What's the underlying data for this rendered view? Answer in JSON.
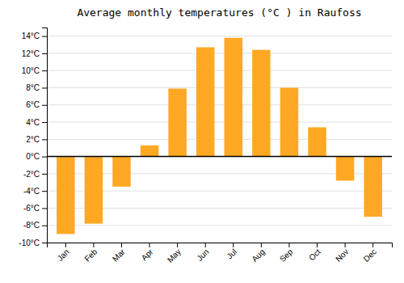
{
  "chart_data": {
    "type": "bar",
    "title": "Average monthly temperatures (°C ) in Raufoss",
    "categories": [
      "Jan",
      "Feb",
      "Mar",
      "Apr",
      "May",
      "Jun",
      "Jul",
      "Aug",
      "Sep",
      "Oct",
      "Nov",
      "Dec"
    ],
    "values": [
      -9.0,
      -7.8,
      -3.5,
      1.3,
      7.9,
      12.7,
      13.8,
      12.4,
      8.0,
      3.4,
      -2.8,
      -7.0
    ],
    "color": "#FFA824",
    "ylim": [
      -10,
      15
    ],
    "yticks": [
      {
        "value": -10,
        "label": "-10°C"
      },
      {
        "value": -8,
        "label": "-8°C"
      },
      {
        "value": -6,
        "label": "-6°C"
      },
      {
        "value": -4,
        "label": "-4°C"
      },
      {
        "value": -2,
        "label": "-2°C"
      },
      {
        "value": 0,
        "label": "0°C"
      },
      {
        "value": 2,
        "label": "2°C"
      },
      {
        "value": 4,
        "label": "4°C"
      },
      {
        "value": 6,
        "label": "6°C"
      },
      {
        "value": 8,
        "label": "8°C"
      },
      {
        "value": 10,
        "label": "10°C"
      },
      {
        "value": 12,
        "label": "12°C"
      },
      {
        "value": 14,
        "label": "14°C"
      }
    ],
    "grid": true
  }
}
